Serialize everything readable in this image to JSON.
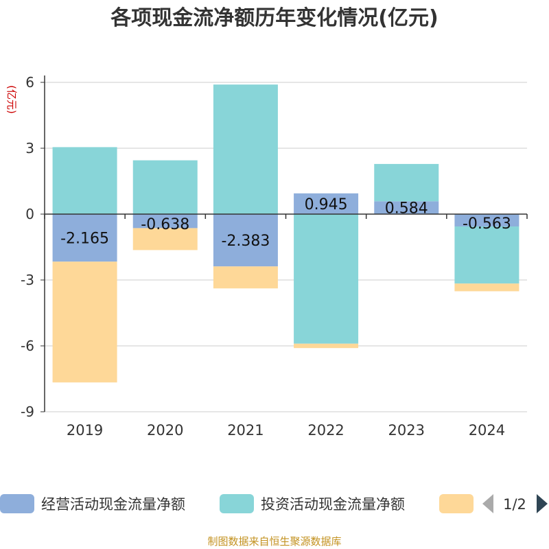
{
  "chart_data": {
    "type": "bar",
    "stacked": true,
    "title": "各项现金流净额历年变化情况(亿元)",
    "ylabel": "(亿元)",
    "xlabel": "",
    "ylim": [
      -9,
      6
    ],
    "yticks": [
      6,
      3,
      0,
      -3,
      -6,
      -9
    ],
    "ytick_labels": [
      "6",
      "3",
      "0",
      "-3",
      "-6",
      "-9"
    ],
    "categories": [
      "2019",
      "2020",
      "2021",
      "2022",
      "2023",
      "2024"
    ],
    "series": [
      {
        "name": "经营活动现金流量净额",
        "values": [
          -2.165,
          -0.638,
          -2.383,
          0.945,
          0.584,
          -0.563
        ],
        "color": "#8eaedb",
        "labels": [
          "-2.165",
          "-0.638",
          "-2.383",
          "0.945",
          "0.584",
          "-0.563"
        ]
      },
      {
        "name": "投资活动现金流量净额",
        "values": [
          3.05,
          2.45,
          5.9,
          -5.9,
          1.7,
          -2.6
        ],
        "color": "#88d5d8"
      },
      {
        "name": "",
        "values": [
          -5.5,
          -1.0,
          -1.0,
          -0.2,
          0,
          -0.35
        ],
        "color": "#fed898"
      }
    ],
    "legend": {
      "position": "bottom",
      "page": "1/2"
    },
    "grid": true,
    "source": "制图数据来自恒生聚源数据库"
  },
  "colors": {
    "title": "#333333",
    "ylabel": "#cc0000",
    "source": "#c39220",
    "grid": "#cccccc",
    "axis": "#333333",
    "tick_text": "#333333",
    "legend_arrow_active": "#2f4554",
    "legend_arrow_inactive": "#aaaaaa"
  }
}
